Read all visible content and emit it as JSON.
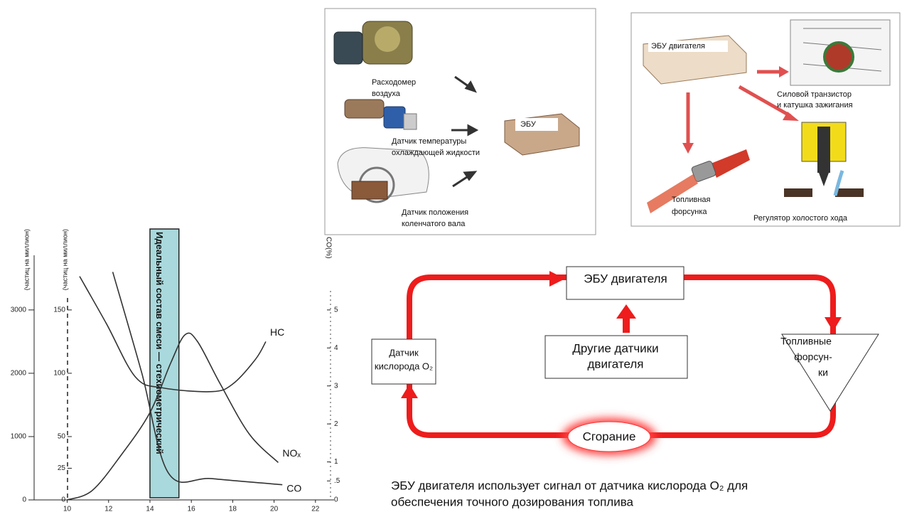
{
  "sensor_panel": {
    "labels": [
      [
        "Расходомер",
        "воздуха"
      ],
      [
        "Датчик температуры",
        "охлаждающей жидкости"
      ],
      [
        "Датчик положения",
        "коленчатого вала"
      ]
    ],
    "ecu": "ЭБУ"
  },
  "actuator_panel": {
    "ecu": "ЭБУ двигателя",
    "labels": [
      [
        "Силовой транзистор",
        "и катушка зажигания"
      ],
      [
        "Топливная",
        "форсунка"
      ],
      [
        "Регулятор холостого хода"
      ]
    ]
  },
  "chart_data": {
    "type": "line",
    "y_label": "(частиц на миллион)",
    "y3_label": "(частиц на миллион)",
    "y2_label": "CO(%)",
    "annotation": "Идеальный состав смеси — стехиометрический",
    "xlim": [
      8.4,
      22.9
    ],
    "xticks": [
      10,
      12,
      14,
      16,
      18,
      20,
      22
    ],
    "ylim": [
      0,
      4200
    ],
    "yticks": [
      0,
      1000,
      2000,
      3000
    ],
    "y3lim": [
      0,
      210
    ],
    "y3ticks": [
      0,
      25,
      50,
      100,
      150
    ],
    "y2lim": [
      0,
      7
    ],
    "y2ticks": [
      0,
      {
        "value": 0.5,
        "label": ".5"
      },
      1,
      2,
      3,
      4,
      5
    ],
    "stoich_range": [
      14.0,
      15.4
    ],
    "series": [
      {
        "name": "HC",
        "color": "#333333",
        "x": [
          10.6,
          11.9,
          13.3,
          14.6,
          17.0,
          18.0,
          19.1,
          19.6
        ],
        "values": [
          3530,
          2780,
          1940,
          1770,
          1710,
          1830,
          2220,
          2500
        ]
      },
      {
        "name": "NOₓ",
        "color": "#333333",
        "x": [
          10.0,
          11.2,
          12.6,
          14.0,
          15.0,
          15.7,
          16.3,
          17.4,
          18.8,
          20.2
        ],
        "values": [
          0,
          146,
          705,
          1380,
          2160,
          2610,
          2500,
          1830,
          1040,
          590
        ]
      },
      {
        "name": "CO",
        "color": "#333333",
        "axis": "y2",
        "x": [
          12.2,
          13.6,
          14.9,
          17.0,
          20.4
        ],
        "values": [
          6.0,
          3.35,
          0.7,
          0.56,
          0.4
        ]
      }
    ]
  },
  "loop": {
    "ecu": "ЭБУ двигателя",
    "other_sensors": [
      "Другие датчики",
      "двигателя"
    ],
    "o2_sensor": [
      "Датчик",
      "кислорода O₂"
    ],
    "injectors": [
      "Топливные",
      "форсун-",
      "ки"
    ],
    "combustion": "Сгорание"
  },
  "caption": [
    "ЭБУ двигателя использует сигнал от датчика кислорода O₂ для",
    "обеспечения точного дозирования топлива"
  ]
}
